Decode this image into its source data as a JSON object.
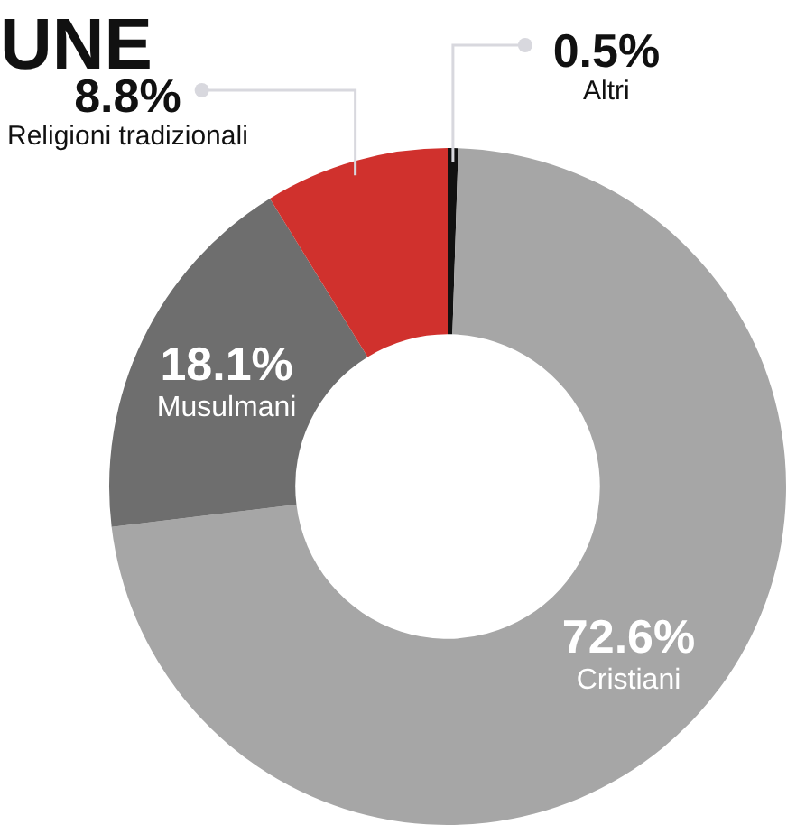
{
  "chart_data": {
    "type": "donut",
    "title": "UNE",
    "categories": [
      "Altri",
      "Cristiani",
      "Musulmani",
      "Religioni tradizionali"
    ],
    "values": [
      0.5,
      72.6,
      18.1,
      8.8
    ],
    "colors": [
      "#111111",
      "#a6a6a6",
      "#6e6e6e",
      "#d0312d"
    ],
    "value_labels": [
      "0.5%",
      "72.6%",
      "18.1%",
      "8.8%"
    ],
    "legend": false
  }
}
